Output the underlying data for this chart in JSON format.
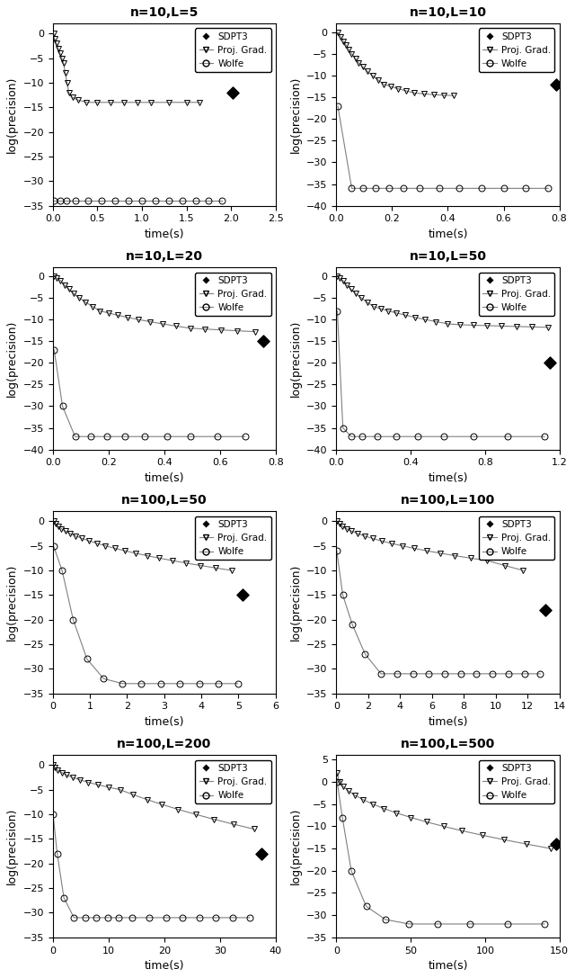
{
  "subplots": [
    {
      "title": "n=10,L=5",
      "xlim": [
        0,
        2.5
      ],
      "ylim": [
        -35,
        2
      ],
      "xticks": [
        0,
        0.5,
        1.0,
        1.5,
        2.0,
        2.5
      ],
      "yticks": [
        0,
        -5,
        -10,
        -15,
        -20,
        -25,
        -30,
        -35
      ],
      "proj_grad_x": [
        0.01,
        0.02,
        0.04,
        0.06,
        0.08,
        0.1,
        0.12,
        0.14,
        0.16,
        0.18,
        0.22,
        0.28,
        0.38,
        0.5,
        0.65,
        0.8,
        0.95,
        1.1,
        1.3,
        1.5,
        1.65
      ],
      "proj_grad_y": [
        0,
        -1,
        -2,
        -3,
        -4,
        -5,
        -6,
        -8,
        -10,
        -12,
        -13,
        -13.5,
        -14,
        -14,
        -14,
        -14,
        -14,
        -14,
        -14,
        -14,
        -14
      ],
      "wolfe_x": [
        0.01,
        0.08,
        0.15,
        0.25,
        0.4,
        0.55,
        0.7,
        0.85,
        1.0,
        1.15,
        1.3,
        1.45,
        1.6,
        1.75,
        1.9
      ],
      "wolfe_y": [
        -34,
        -34,
        -34,
        -34,
        -34,
        -34,
        -34,
        -34,
        -34,
        -34,
        -34,
        -34,
        -34,
        -34,
        -34
      ],
      "sdpt3_x": [
        2.02
      ],
      "sdpt3_y": [
        -12
      ]
    },
    {
      "title": "n=10,L=10",
      "xlim": [
        0,
        0.8
      ],
      "ylim": [
        -40,
        2
      ],
      "xticks": [
        0,
        0.2,
        0.4,
        0.6,
        0.8
      ],
      "yticks": [
        0,
        -5,
        -10,
        -15,
        -20,
        -25,
        -30,
        -35,
        -40
      ],
      "proj_grad_x": [
        0.005,
        0.015,
        0.025,
        0.035,
        0.045,
        0.055,
        0.068,
        0.08,
        0.095,
        0.11,
        0.13,
        0.15,
        0.17,
        0.195,
        0.22,
        0.25,
        0.28,
        0.315,
        0.35,
        0.385,
        0.42
      ],
      "proj_grad_y": [
        0,
        -1,
        -2,
        -3,
        -4,
        -5,
        -6,
        -7,
        -8,
        -9,
        -10,
        -11,
        -12,
        -12.5,
        -13,
        -13.5,
        -14,
        -14.2,
        -14.4,
        -14.5,
        -14.6
      ],
      "wolfe_x": [
        0.005,
        0.055,
        0.095,
        0.14,
        0.19,
        0.24,
        0.3,
        0.37,
        0.44,
        0.52,
        0.6,
        0.68,
        0.76
      ],
      "wolfe_y": [
        -17,
        -36,
        -36,
        -36,
        -36,
        -36,
        -36,
        -36,
        -36,
        -36,
        -36,
        -36,
        -36
      ],
      "sdpt3_x": [
        0.79
      ],
      "sdpt3_y": [
        -12
      ]
    },
    {
      "title": "n=10,L=20",
      "xlim": [
        0,
        0.8
      ],
      "ylim": [
        -40,
        2
      ],
      "xticks": [
        0,
        0.2,
        0.4,
        0.6,
        0.8
      ],
      "yticks": [
        0,
        -5,
        -10,
        -15,
        -20,
        -25,
        -30,
        -35,
        -40
      ],
      "proj_grad_x": [
        0.005,
        0.015,
        0.028,
        0.042,
        0.058,
        0.075,
        0.095,
        0.118,
        0.143,
        0.17,
        0.2,
        0.233,
        0.268,
        0.307,
        0.349,
        0.394,
        0.442,
        0.493,
        0.547,
        0.604,
        0.663,
        0.725
      ],
      "proj_grad_y": [
        0,
        -0.5,
        -1,
        -2,
        -3,
        -4,
        -5,
        -6,
        -7,
        -8,
        -8.5,
        -9,
        -9.5,
        -10,
        -10.5,
        -11,
        -11.5,
        -12,
        -12.2,
        -12.4,
        -12.6,
        -12.8
      ],
      "wolfe_x": [
        0.005,
        0.035,
        0.08,
        0.135,
        0.195,
        0.26,
        0.33,
        0.41,
        0.495,
        0.59,
        0.69
      ],
      "wolfe_y": [
        -17,
        -30,
        -37,
        -37,
        -37,
        -37,
        -37,
        -37,
        -37,
        -37,
        -37
      ],
      "sdpt3_x": [
        0.755
      ],
      "sdpt3_y": [
        -15
      ]
    },
    {
      "title": "n=10,L=50",
      "xlim": [
        0,
        1.2
      ],
      "ylim": [
        -40,
        2
      ],
      "xticks": [
        0,
        0.4,
        0.8,
        1.2
      ],
      "yticks": [
        0,
        -5,
        -10,
        -15,
        -20,
        -25,
        -30,
        -35,
        -40
      ],
      "proj_grad_x": [
        0.005,
        0.018,
        0.035,
        0.055,
        0.078,
        0.104,
        0.133,
        0.165,
        0.2,
        0.238,
        0.279,
        0.324,
        0.372,
        0.424,
        0.479,
        0.537,
        0.6,
        0.666,
        0.736,
        0.81,
        0.887,
        0.968,
        1.053,
        1.14
      ],
      "proj_grad_y": [
        0,
        -0.5,
        -1,
        -2,
        -3,
        -4,
        -5,
        -6,
        -7,
        -7.5,
        -8,
        -8.5,
        -9,
        -9.5,
        -10,
        -10.5,
        -11,
        -11.2,
        -11.3,
        -11.4,
        -11.5,
        -11.6,
        -11.7,
        -11.8
      ],
      "wolfe_x": [
        0.005,
        0.035,
        0.08,
        0.14,
        0.22,
        0.32,
        0.44,
        0.58,
        0.74,
        0.92,
        1.12
      ],
      "wolfe_y": [
        -8,
        -35,
        -37,
        -37,
        -37,
        -37,
        -37,
        -37,
        -37,
        -37,
        -37
      ],
      "sdpt3_x": [
        1.15
      ],
      "sdpt3_y": [
        -20
      ]
    },
    {
      "title": "n=100,L=50",
      "xlim": [
        0,
        6
      ],
      "ylim": [
        -35,
        2
      ],
      "xticks": [
        0,
        1,
        2,
        3,
        4,
        5,
        6
      ],
      "yticks": [
        0,
        -5,
        -10,
        -15,
        -20,
        -25,
        -30,
        -35
      ],
      "proj_grad_x": [
        0.02,
        0.07,
        0.14,
        0.23,
        0.34,
        0.47,
        0.62,
        0.79,
        0.98,
        1.19,
        1.42,
        1.67,
        1.94,
        2.23,
        2.54,
        2.87,
        3.22,
        3.59,
        3.98,
        4.39,
        4.82
      ],
      "proj_grad_y": [
        0,
        -0.5,
        -1,
        -1.5,
        -2,
        -2.5,
        -3,
        -3.5,
        -4,
        -4.5,
        -5,
        -5.5,
        -6,
        -6.5,
        -7,
        -7.5,
        -8,
        -8.5,
        -9,
        -9.5,
        -10
      ],
      "wolfe_x": [
        0.02,
        0.25,
        0.55,
        0.92,
        1.37,
        1.88,
        2.38,
        2.9,
        3.42,
        3.94,
        4.46,
        4.98
      ],
      "wolfe_y": [
        -5,
        -10,
        -20,
        -28,
        -32,
        -33,
        -33,
        -33,
        -33,
        -33,
        -33,
        -33
      ],
      "sdpt3_x": [
        5.1
      ],
      "sdpt3_y": [
        -15
      ]
    },
    {
      "title": "n=100,L=100",
      "xlim": [
        0,
        14
      ],
      "ylim": [
        -35,
        2
      ],
      "xticks": [
        0,
        2,
        4,
        6,
        8,
        10,
        12,
        14
      ],
      "yticks": [
        0,
        -5,
        -10,
        -15,
        -20,
        -25,
        -30,
        -35
      ],
      "proj_grad_x": [
        0.05,
        0.18,
        0.38,
        0.63,
        0.95,
        1.33,
        1.77,
        2.27,
        2.83,
        3.45,
        4.13,
        4.87,
        5.67,
        6.53,
        7.45,
        8.43,
        9.47,
        10.57,
        11.73
      ],
      "proj_grad_y": [
        0,
        -0.5,
        -1,
        -1.5,
        -2,
        -2.5,
        -3,
        -3.5,
        -4,
        -4.5,
        -5,
        -5.5,
        -6,
        -6.5,
        -7,
        -7.5,
        -8,
        -9,
        -10
      ],
      "wolfe_x": [
        0.02,
        0.4,
        1.0,
        1.8,
        2.8,
        3.8,
        4.8,
        5.8,
        6.8,
        7.8,
        8.8,
        9.8,
        10.8,
        11.8,
        12.8
      ],
      "wolfe_y": [
        -6,
        -15,
        -21,
        -27,
        -31,
        -31,
        -31,
        -31,
        -31,
        -31,
        -31,
        -31,
        -31,
        -31,
        -31
      ],
      "sdpt3_x": [
        13.1
      ],
      "sdpt3_y": [
        -18
      ]
    },
    {
      "title": "n=100,L=200",
      "xlim": [
        0,
        40
      ],
      "ylim": [
        -35,
        2
      ],
      "xticks": [
        0,
        10,
        20,
        30,
        40
      ],
      "yticks": [
        0,
        -5,
        -10,
        -15,
        -20,
        -25,
        -30,
        -35
      ],
      "proj_grad_x": [
        0.1,
        0.4,
        0.9,
        1.6,
        2.5,
        3.6,
        4.9,
        6.4,
        8.1,
        10.0,
        12.1,
        14.4,
        16.9,
        19.6,
        22.5,
        25.6,
        28.9,
        32.4,
        36.1
      ],
      "proj_grad_y": [
        0,
        -0.5,
        -1,
        -1.5,
        -2,
        -2.5,
        -3,
        -3.5,
        -4,
        -4.5,
        -5,
        -6,
        -7,
        -8,
        -9,
        -10,
        -11,
        -12,
        -13
      ],
      "wolfe_x": [
        0.05,
        0.8,
        2.0,
        3.8,
        5.8,
        7.8,
        9.8,
        11.8,
        14.3,
        17.3,
        20.3,
        23.3,
        26.3,
        29.3,
        32.3,
        35.3
      ],
      "wolfe_y": [
        -10,
        -18,
        -27,
        -31,
        -31,
        -31,
        -31,
        -31,
        -31,
        -31,
        -31,
        -31,
        -31,
        -31,
        -31,
        -31
      ],
      "sdpt3_x": [
        37.5
      ],
      "sdpt3_y": [
        -18
      ]
    },
    {
      "title": "n=100,L=500",
      "xlim": [
        0,
        150
      ],
      "ylim": [
        -35,
        6
      ],
      "xticks": [
        0,
        50,
        100,
        150
      ],
      "yticks": [
        5,
        0,
        -5,
        -10,
        -15,
        -20,
        -25,
        -30,
        -35
      ],
      "proj_grad_x": [
        0.5,
        2,
        4.5,
        8,
        12.5,
        18,
        24.5,
        32,
        40.5,
        50,
        60.5,
        72,
        84.5,
        98,
        112.5,
        128,
        144
      ],
      "proj_grad_y": [
        2,
        0,
        -1,
        -2,
        -3,
        -4,
        -5,
        -6,
        -7,
        -8,
        -9,
        -10,
        -11,
        -12,
        -13,
        -14,
        -15
      ],
      "wolfe_x": [
        0.5,
        4,
        10,
        20,
        33,
        49,
        68,
        90,
        115,
        140
      ],
      "wolfe_y": [
        0,
        -8,
        -20,
        -28,
        -31,
        -32,
        -32,
        -32,
        -32,
        -32
      ],
      "sdpt3_x": [
        148
      ],
      "sdpt3_y": [
        -14
      ]
    }
  ],
  "line_color": "#808080",
  "proj_marker": "v",
  "wolfe_marker": "o",
  "sdpt3_marker": "D",
  "marker_size": 5,
  "sdpt3_marker_size": 8,
  "ylabel": "log(precision)",
  "xlabel": "time(s)",
  "legend_labels": [
    "SDPT3",
    "Proj. Grad.",
    "Wolfe"
  ],
  "title_fontsize": 10,
  "label_fontsize": 9,
  "tick_fontsize": 8
}
